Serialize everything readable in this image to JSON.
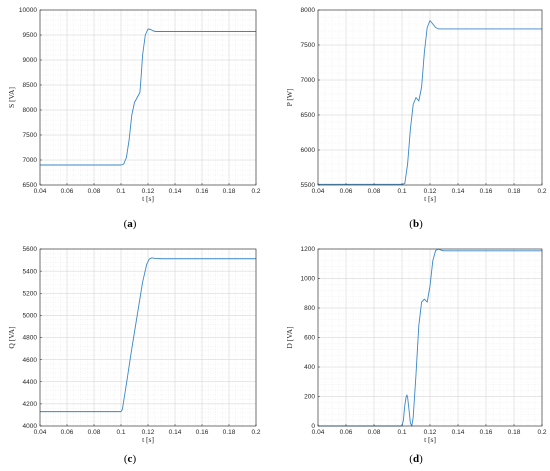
{
  "chart_data": [
    {
      "type": "line",
      "caption": "(a)",
      "xlabel": "t [s]",
      "ylabel": "S [VA]",
      "xlim": [
        0.04,
        0.2
      ],
      "ylim": [
        6500,
        10000
      ],
      "xticks": [
        "0.04",
        "0.06",
        "0.08",
        "0.1",
        "0.12",
        "0.14",
        "0.16",
        "0.18",
        "0.2"
      ],
      "yticks": [
        "6500",
        "7000",
        "7500",
        "8000",
        "8500",
        "9000",
        "9500",
        "10000"
      ],
      "grid": true,
      "line_color": "#3a87c8",
      "series": [
        {
          "x": [
            0.04,
            0.1,
            0.102,
            0.104,
            0.106,
            0.108,
            0.11,
            0.112,
            0.114,
            0.115,
            0.116,
            0.118,
            0.12,
            0.122,
            0.124,
            0.126,
            0.13,
            0.14,
            0.2
          ],
          "y": [
            6900,
            6900,
            6920,
            7050,
            7400,
            7900,
            8150,
            8250,
            8350,
            8700,
            9100,
            9500,
            9620,
            9610,
            9580,
            9570,
            9570,
            9570,
            9570
          ]
        }
      ]
    },
    {
      "type": "line",
      "caption": "(b)",
      "xlabel": "t [s]",
      "ylabel": "P [W]",
      "xlim": [
        0.04,
        0.2
      ],
      "ylim": [
        5500,
        8000
      ],
      "xticks": [
        "0.04",
        "0.06",
        "0.08",
        "0.1",
        "0.12",
        "0.14",
        "0.16",
        "0.18",
        "0.2"
      ],
      "yticks": [
        "5500",
        "6000",
        "6500",
        "7000",
        "7500",
        "8000"
      ],
      "grid": true,
      "line_color": "#3a87c8",
      "series": [
        {
          "x": [
            0.04,
            0.1,
            0.102,
            0.104,
            0.106,
            0.108,
            0.11,
            0.112,
            0.114,
            0.116,
            0.118,
            0.12,
            0.122,
            0.124,
            0.126,
            0.13,
            0.14,
            0.2
          ],
          "y": [
            5510,
            5510,
            5520,
            5800,
            6300,
            6650,
            6750,
            6700,
            6900,
            7400,
            7750,
            7850,
            7800,
            7750,
            7730,
            7730,
            7730,
            7730
          ]
        }
      ]
    },
    {
      "type": "line",
      "caption": "(c)",
      "xlabel": "t [s]",
      "ylabel": "Q [VA]",
      "xlim": [
        0.04,
        0.2
      ],
      "ylim": [
        4000,
        5600
      ],
      "xticks": [
        "0.04",
        "0.06",
        "0.08",
        "0.1",
        "0.12",
        "0.14",
        "0.16",
        "0.18",
        "0.2"
      ],
      "yticks": [
        "4000",
        "4200",
        "4400",
        "4600",
        "4800",
        "5000",
        "5200",
        "5400",
        "5600"
      ],
      "grid": true,
      "line_color": "#3a87c8",
      "series": [
        {
          "x": [
            0.04,
            0.1,
            0.101,
            0.104,
            0.108,
            0.112,
            0.116,
            0.119,
            0.121,
            0.123,
            0.125,
            0.13,
            0.14,
            0.2
          ],
          "y": [
            4130,
            4130,
            4150,
            4380,
            4700,
            5000,
            5300,
            5460,
            5510,
            5520,
            5515,
            5512,
            5512,
            5512
          ]
        }
      ]
    },
    {
      "type": "line",
      "caption": "(d)",
      "xlabel": "t [s]",
      "ylabel": "D [VA]",
      "xlim": [
        0.04,
        0.2
      ],
      "ylim": [
        0,
        1200
      ],
      "xticks": [
        "0.04",
        "0.06",
        "0.08",
        "0.1",
        "0.12",
        "0.14",
        "0.16",
        "0.18",
        "0.2"
      ],
      "yticks": [
        "0",
        "200",
        "400",
        "600",
        "800",
        "1000",
        "1200"
      ],
      "grid": true,
      "line_color": "#3a87c8",
      "series": [
        {
          "x": [
            0.04,
            0.1,
            0.101,
            0.102,
            0.103,
            0.1035,
            0.104,
            0.105,
            0.106,
            0.107,
            0.108,
            0.11,
            0.112,
            0.114,
            0.116,
            0.118,
            0.12,
            0.122,
            0.124,
            0.126,
            0.128,
            0.13,
            0.14,
            0.2
          ],
          "y": [
            0,
            0,
            40,
            140,
            200,
            210,
            195,
            110,
            20,
            0,
            60,
            350,
            680,
            840,
            860,
            840,
            950,
            1120,
            1190,
            1200,
            1192,
            1188,
            1188,
            1188
          ]
        }
      ]
    }
  ]
}
